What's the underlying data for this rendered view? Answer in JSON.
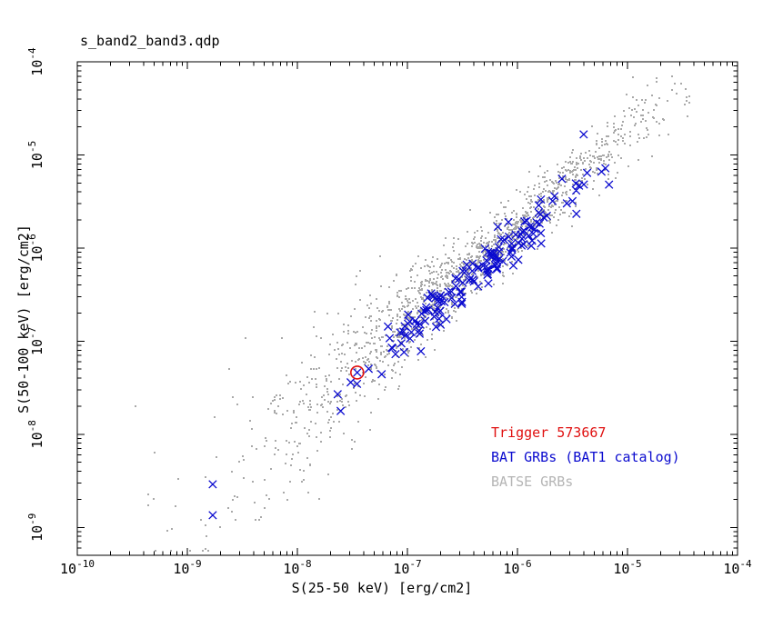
{
  "window": {
    "background": "#ffffff"
  },
  "chart_data": {
    "type": "scatter",
    "title": "s_band2_band3.qdp",
    "xlabel": "S(25-50 keV) [erg/cm2]",
    "ylabel": "S(50-100 keV) [erg/cm2]",
    "x_scale": "log",
    "y_scale": "log",
    "xlim": [
      1e-10,
      0.0001
    ],
    "ylim": [
      5e-10,
      0.0001
    ],
    "xlim_exp": [
      -10,
      -4
    ],
    "ylim_exp": [
      -9.3,
      -4
    ],
    "grid": false,
    "x_tick_exponents": [
      -10,
      -9,
      -8,
      -7,
      -6,
      -5,
      -4
    ],
    "x_tick_labels": [
      "10^-10",
      "10^-9",
      "10^-8",
      "10^-7",
      "10^-6",
      "10^-5",
      "10^-4"
    ],
    "y_tick_exponents": [
      -4,
      -5,
      -6,
      -7,
      -8,
      -9
    ],
    "y_tick_labels": [
      "10^-4",
      "10^-5",
      "10^-6",
      "10^-7",
      "10^-8",
      "10^-9"
    ],
    "legend": {
      "position": "inside-bottom-right",
      "entries": [
        {
          "label": "Trigger 573667",
          "color": "#e01010"
        },
        {
          "label": "BAT GRBs (BAT1 catalog)",
          "color": "#0b0bcf"
        },
        {
          "label": "BATSE GRBs",
          "color": "#b5b5b5"
        }
      ]
    },
    "series": [
      {
        "name": "Trigger 573667",
        "marker": "open-circle",
        "color": "#e01010",
        "points": [
          [
            3.5e-08,
            4.6e-08
          ]
        ]
      },
      {
        "name": "BAT GRBs (BAT1 catalog)",
        "marker": "x",
        "color": "#0b0bcf",
        "count": 160,
        "seed": 573667,
        "logx_distribution": {
          "mean": -6.35,
          "sigma": 0.6,
          "min": -8.85,
          "max": -5.3
        },
        "trend": {
          "slope": 1,
          "offset_dex": 0.09,
          "scatter_dex": 0.12
        },
        "notable_points": [
          [
            3.5e-08,
            4.6e-08
          ],
          [
            4e-06,
            1.66e-05
          ],
          [
            1.7e-09,
            2.9e-09
          ],
          [
            1.7e-09,
            1.35e-09
          ],
          [
            5.8e-06,
            6.6e-06
          ],
          [
            6.3e-06,
            7.2e-06
          ],
          [
            6.8e-06,
            4.8e-06
          ]
        ]
      },
      {
        "name": "BATSE GRBs",
        "marker": "dot",
        "color": "#a9a9a9",
        "count": 1600,
        "seed": 41997,
        "logx_distribution": {
          "mean": -6.5,
          "sigma": 0.95,
          "min": -9.55,
          "max": -4.4
        },
        "trend": {
          "slope": 1,
          "offset_dex": 0.22,
          "scatter_dex": 0.16,
          "scatter_lowx_extra": 0.5
        },
        "notable_points": [
          [
            1.8e-05,
            3.5e-05
          ],
          [
            1.15e-05,
            2.55e-05
          ],
          [
            3.4e-10,
            2e-08
          ],
          [
            5e-10,
            6.4e-09
          ],
          [
            1.5e-09,
            8e-10
          ],
          [
            4.5e-09,
            1.2e-09
          ],
          [
            2e-09,
            1e-09
          ]
        ]
      }
    ]
  }
}
